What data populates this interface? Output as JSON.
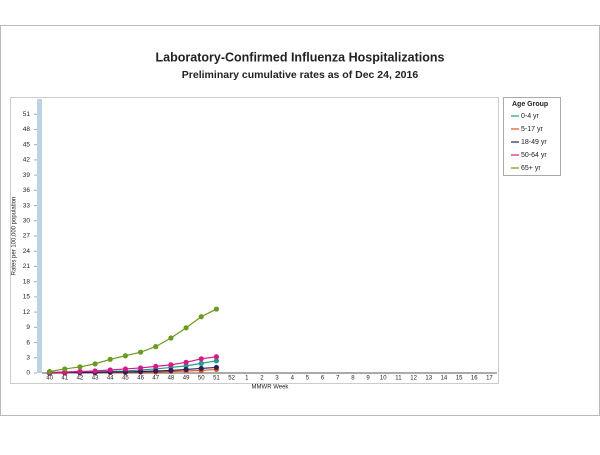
{
  "chart_data": {
    "type": "line",
    "title": "Laboratory-Confirmed Influenza Hospitalizations",
    "subtitle": "Preliminary cumulative rates as of Dec 24, 2016",
    "x_label": "MMWR Week",
    "y_label": "Rates per 100,000 population",
    "legend_title": "Age Group",
    "legend_position": "right",
    "categories": [
      "40",
      "41",
      "42",
      "43",
      "44",
      "45",
      "46",
      "47",
      "48",
      "49",
      "50",
      "51",
      "52",
      "1",
      "2",
      "3",
      "4",
      "5",
      "6",
      "7",
      "8",
      "9",
      "10",
      "11",
      "12",
      "13",
      "14",
      "15",
      "16",
      "17"
    ],
    "ylim": [
      0,
      54
    ],
    "yticks": [
      0,
      3,
      6,
      9,
      12,
      15,
      18,
      21,
      24,
      27,
      30,
      33,
      36,
      39,
      42,
      45,
      48,
      51
    ],
    "series": [
      {
        "name": "0-4 yr",
        "color": "#1f9e89",
        "values": [
          0.1,
          0.1,
          0.2,
          0.2,
          0.3,
          0.4,
          0.6,
          0.8,
          1.1,
          1.4,
          1.9,
          2.4,
          null,
          null,
          null,
          null,
          null,
          null,
          null,
          null,
          null,
          null,
          null,
          null,
          null,
          null,
          null,
          null,
          null,
          null
        ]
      },
      {
        "name": "5-17 yr",
        "color": "#e8541e",
        "values": [
          0,
          0,
          0.1,
          0.1,
          0.1,
          0.1,
          0.2,
          0.2,
          0.3,
          0.4,
          0.5,
          0.7,
          null,
          null,
          null,
          null,
          null,
          null,
          null,
          null,
          null,
          null,
          null,
          null,
          null,
          null,
          null,
          null,
          null,
          null
        ]
      },
      {
        "name": "18-49 yr",
        "color": "#2b1f5c",
        "values": [
          0,
          0.1,
          0.1,
          0.1,
          0.2,
          0.2,
          0.3,
          0.4,
          0.5,
          0.7,
          0.9,
          1.1,
          null,
          null,
          null,
          null,
          null,
          null,
          null,
          null,
          null,
          null,
          null,
          null,
          null,
          null,
          null,
          null,
          null,
          null
        ]
      },
      {
        "name": "50-64 yr",
        "color": "#d6198a",
        "values": [
          0.1,
          0.2,
          0.3,
          0.4,
          0.6,
          0.8,
          1.0,
          1.3,
          1.6,
          2.1,
          2.8,
          3.2,
          null,
          null,
          null,
          null,
          null,
          null,
          null,
          null,
          null,
          null,
          null,
          null,
          null,
          null,
          null,
          null,
          null,
          null
        ]
      },
      {
        "name": "65+ yr",
        "color": "#6a9a1f",
        "values": [
          0.3,
          0.8,
          1.2,
          1.8,
          2.7,
          3.4,
          4.1,
          5.2,
          6.9,
          8.9,
          11.1,
          12.6,
          null,
          null,
          null,
          null,
          null,
          null,
          null,
          null,
          null,
          null,
          null,
          null,
          null,
          null,
          null,
          null,
          null,
          null
        ]
      }
    ]
  }
}
